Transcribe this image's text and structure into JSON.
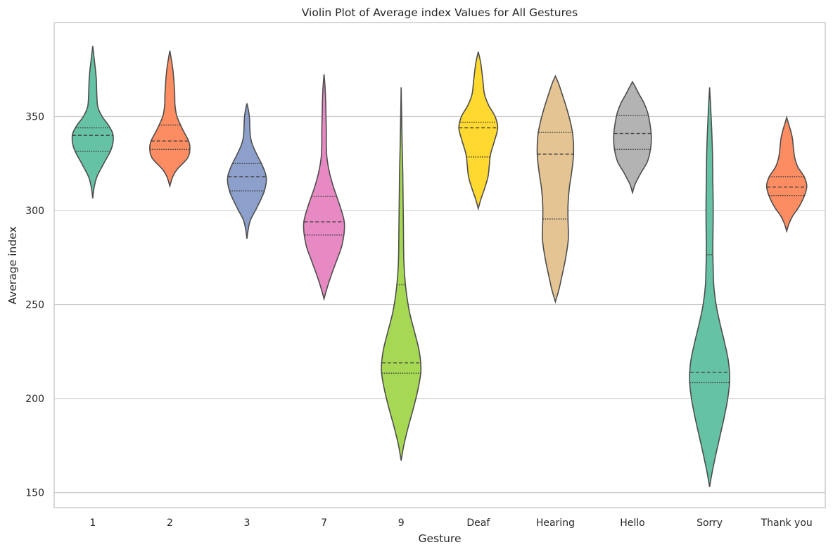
{
  "chart_data": {
    "type": "violin",
    "title": "Violin Plot of Average index Values for All Gestures",
    "xlabel": "Gesture",
    "ylabel": "Average index",
    "ylim": [
      142,
      400
    ],
    "yticks": [
      150,
      200,
      250,
      300,
      350
    ],
    "grid": "horizontal",
    "inner": "quartile",
    "categories": [
      "1",
      "2",
      "3",
      "7",
      "9",
      "Deaf",
      "Hearing",
      "Hello",
      "Sorry",
      "Thank you"
    ],
    "series": [
      {
        "category": "1",
        "color": "#66c2a5",
        "min": 306.5,
        "max": 387.5,
        "q1": 331.5,
        "median": 340.0,
        "q3": 344.0,
        "density": [
          [
            306.5,
            0
          ],
          [
            312,
            0.04
          ],
          [
            318,
            0.13
          ],
          [
            325,
            0.34
          ],
          [
            333,
            0.58
          ],
          [
            340,
            0.63
          ],
          [
            345,
            0.5
          ],
          [
            350,
            0.29
          ],
          [
            355,
            0.16
          ],
          [
            360,
            0.13
          ],
          [
            365,
            0.12
          ],
          [
            370,
            0.11
          ],
          [
            374,
            0.09
          ],
          [
            380,
            0.05
          ],
          [
            387.5,
            0
          ]
        ]
      },
      {
        "category": "2",
        "color": "#fc8d62",
        "min": 313.0,
        "max": 385.0,
        "q1": 332.5,
        "median": 337.0,
        "q3": 345.5,
        "density": [
          [
            313,
            0
          ],
          [
            318,
            0.09
          ],
          [
            322,
            0.23
          ],
          [
            328,
            0.55
          ],
          [
            333,
            0.62
          ],
          [
            337,
            0.58
          ],
          [
            343,
            0.4
          ],
          [
            350,
            0.22
          ],
          [
            356,
            0.16
          ],
          [
            362,
            0.15
          ],
          [
            368,
            0.13
          ],
          [
            374,
            0.1
          ],
          [
            379,
            0.06
          ],
          [
            385,
            0
          ]
        ]
      },
      {
        "category": "3",
        "color": "#8da0cb",
        "min": 285.0,
        "max": 357.0,
        "q1": 310.5,
        "median": 318.0,
        "q3": 325.0,
        "density": [
          [
            285,
            0
          ],
          [
            290,
            0.04
          ],
          [
            295,
            0.11
          ],
          [
            302,
            0.32
          ],
          [
            310,
            0.53
          ],
          [
            317,
            0.6
          ],
          [
            323,
            0.5
          ],
          [
            330,
            0.3
          ],
          [
            335,
            0.17
          ],
          [
            339,
            0.11
          ],
          [
            344,
            0.09
          ],
          [
            349,
            0.08
          ],
          [
            353,
            0.05
          ],
          [
            357,
            0
          ]
        ]
      },
      {
        "category": "7",
        "color": "#e78ac3",
        "min": 253.0,
        "max": 372.5,
        "q1": 287.0,
        "median": 294.0,
        "q3": 307.5,
        "density": [
          [
            253,
            0
          ],
          [
            258,
            0.08
          ],
          [
            265,
            0.21
          ],
          [
            273,
            0.38
          ],
          [
            282,
            0.56
          ],
          [
            293,
            0.63
          ],
          [
            303,
            0.48
          ],
          [
            312,
            0.3
          ],
          [
            320,
            0.17
          ],
          [
            328,
            0.09
          ],
          [
            335,
            0.07
          ],
          [
            342,
            0.07
          ],
          [
            350,
            0.06
          ],
          [
            358,
            0.05
          ],
          [
            366,
            0.03
          ],
          [
            372.5,
            0
          ]
        ]
      },
      {
        "category": "9",
        "color": "#a6d854",
        "min": 167.0,
        "max": 365.5,
        "q1": 213.5,
        "median": 219.0,
        "q3": 260.5,
        "density": [
          [
            167,
            0
          ],
          [
            175,
            0.08
          ],
          [
            185,
            0.22
          ],
          [
            195,
            0.38
          ],
          [
            205,
            0.52
          ],
          [
            215,
            0.61
          ],
          [
            225,
            0.56
          ],
          [
            235,
            0.42
          ],
          [
            245,
            0.27
          ],
          [
            255,
            0.17
          ],
          [
            265,
            0.11
          ],
          [
            275,
            0.08
          ],
          [
            290,
            0.07
          ],
          [
            305,
            0.06
          ],
          [
            320,
            0.05
          ],
          [
            335,
            0.03
          ],
          [
            350,
            0.015
          ],
          [
            365.5,
            0
          ]
        ]
      },
      {
        "category": "Deaf",
        "color": "#ffd92f",
        "min": 301.0,
        "max": 384.5,
        "q1": 328.5,
        "median": 344.0,
        "q3": 347.0,
        "density": [
          [
            301,
            0
          ],
          [
            306,
            0.08
          ],
          [
            312,
            0.2
          ],
          [
            318,
            0.3
          ],
          [
            324,
            0.34
          ],
          [
            330,
            0.38
          ],
          [
            337,
            0.5
          ],
          [
            344,
            0.6
          ],
          [
            350,
            0.52
          ],
          [
            356,
            0.32
          ],
          [
            362,
            0.19
          ],
          [
            368,
            0.15
          ],
          [
            374,
            0.11
          ],
          [
            379,
            0.07
          ],
          [
            384.5,
            0
          ]
        ]
      },
      {
        "category": "Hearing",
        "color": "#e5c494",
        "min": 251.5,
        "max": 371.5,
        "q1": 295.5,
        "median": 330.0,
        "q3": 341.5,
        "density": [
          [
            251.5,
            0
          ],
          [
            258,
            0.11
          ],
          [
            265,
            0.2
          ],
          [
            275,
            0.32
          ],
          [
            285,
            0.4
          ],
          [
            295,
            0.39
          ],
          [
            303,
            0.39
          ],
          [
            312,
            0.43
          ],
          [
            320,
            0.5
          ],
          [
            330,
            0.56
          ],
          [
            340,
            0.54
          ],
          [
            348,
            0.45
          ],
          [
            356,
            0.32
          ],
          [
            364,
            0.17
          ],
          [
            368,
            0.09
          ],
          [
            371.5,
            0
          ]
        ]
      },
      {
        "category": "Hello",
        "color": "#b3b3b3",
        "min": 309.5,
        "max": 368.5,
        "q1": 332.5,
        "median": 341.0,
        "q3": 350.5,
        "density": [
          [
            309.5,
            0
          ],
          [
            314,
            0.08
          ],
          [
            320,
            0.26
          ],
          [
            326,
            0.46
          ],
          [
            333,
            0.56
          ],
          [
            340,
            0.58
          ],
          [
            346,
            0.54
          ],
          [
            352,
            0.47
          ],
          [
            357,
            0.36
          ],
          [
            362,
            0.2
          ],
          [
            366,
            0.08
          ],
          [
            368.5,
            0
          ]
        ]
      },
      {
        "category": "Sorry",
        "color": "#66c2a5",
        "min": 153.0,
        "max": 365.5,
        "q1": 208.5,
        "median": 214.0,
        "q3": 276.5,
        "density": [
          [
            153,
            0
          ],
          [
            160,
            0.07
          ],
          [
            170,
            0.19
          ],
          [
            180,
            0.32
          ],
          [
            190,
            0.45
          ],
          [
            200,
            0.56
          ],
          [
            210,
            0.62
          ],
          [
            220,
            0.58
          ],
          [
            230,
            0.46
          ],
          [
            240,
            0.32
          ],
          [
            250,
            0.2
          ],
          [
            260,
            0.13
          ],
          [
            270,
            0.11
          ],
          [
            280,
            0.1
          ],
          [
            295,
            0.11
          ],
          [
            305,
            0.11
          ],
          [
            315,
            0.1
          ],
          [
            330,
            0.09
          ],
          [
            345,
            0.06
          ],
          [
            356,
            0.03
          ],
          [
            365.5,
            0
          ]
        ]
      },
      {
        "category": "Thank you",
        "color": "#fc8d62",
        "min": 289.0,
        "max": 349.5,
        "q1": 308.0,
        "median": 312.5,
        "q3": 318.0,
        "density": [
          [
            289,
            0
          ],
          [
            293,
            0.07
          ],
          [
            297,
            0.18
          ],
          [
            302,
            0.38
          ],
          [
            308,
            0.55
          ],
          [
            313,
            0.62
          ],
          [
            318,
            0.54
          ],
          [
            323,
            0.35
          ],
          [
            328,
            0.25
          ],
          [
            333,
            0.21
          ],
          [
            338,
            0.18
          ],
          [
            342,
            0.13
          ],
          [
            346,
            0.06
          ],
          [
            349.5,
            0
          ]
        ]
      }
    ]
  }
}
